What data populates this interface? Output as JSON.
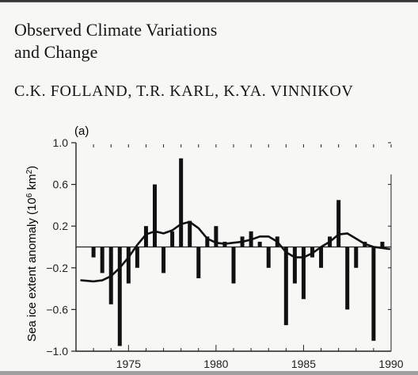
{
  "document": {
    "title_line1": "Observed Climate Variations",
    "title_line2": "and Change",
    "authors": "C.K. FOLLAND,  T.R. KARL,  K.YA. VINNIKOV"
  },
  "chart_data": {
    "type": "bar",
    "panel_label": "(a)",
    "xlabel": "",
    "ylabel_main": "Sea ice extent anomaly (10",
    "ylabel_exp": "6",
    "ylabel_unit": " km",
    "ylabel_sq": "2",
    "ylabel_close": ")",
    "xlim": [
      1972,
      1990
    ],
    "ylim": [
      -1.0,
      1.0
    ],
    "x_ticks": [
      1975,
      1980,
      1985,
      1990
    ],
    "x_tick_labels": [
      "1975",
      "1980",
      "1985",
      "1990"
    ],
    "y_ticks": [
      1.0,
      0.6,
      0.2,
      -0.2,
      -0.6,
      -1.0
    ],
    "y_tick_labels": [
      "1.0",
      "0.6",
      "0.2",
      "−0.2",
      "−0.6",
      "−1.0"
    ],
    "grid": false,
    "series": [
      {
        "style": "monthly-bars",
        "x": [
          1973.0,
          1973.5,
          1974.0,
          1974.5,
          1975.0,
          1975.5,
          1976.0,
          1976.5,
          1977.0,
          1977.5,
          1978.0,
          1978.5,
          1979.0,
          1979.5,
          1980.0,
          1980.5,
          1981.0,
          1981.5,
          1982.0,
          1982.5,
          1983.0,
          1983.5,
          1984.0,
          1984.5,
          1985.0,
          1985.5,
          1986.0,
          1986.5,
          1987.0,
          1987.5,
          1988.0,
          1988.5,
          1989.0,
          1989.5
        ],
        "values": [
          -0.1,
          -0.25,
          -0.55,
          -0.95,
          -0.35,
          -0.2,
          0.2,
          0.6,
          -0.25,
          0.15,
          0.85,
          0.25,
          -0.3,
          0.1,
          0.2,
          0.05,
          -0.35,
          0.1,
          0.15,
          0.05,
          -0.2,
          0.1,
          -0.75,
          -0.35,
          -0.5,
          -0.1,
          -0.2,
          0.1,
          0.45,
          -0.6,
          -0.2,
          0.05,
          -0.9,
          0.05
        ]
      },
      {
        "style": "smoothed-line",
        "x": [
          1972.3,
          1973.0,
          1973.5,
          1974.0,
          1974.5,
          1975.0,
          1975.5,
          1976.0,
          1976.5,
          1977.0,
          1977.5,
          1978.0,
          1978.5,
          1979.0,
          1979.5,
          1980.0,
          1980.5,
          1981.0,
          1981.5,
          1982.0,
          1982.5,
          1983.0,
          1983.5,
          1984.0,
          1984.5,
          1985.0,
          1985.5,
          1986.0,
          1986.5,
          1987.0,
          1987.5,
          1988.0,
          1988.5,
          1989.0,
          1989.5,
          1989.9
        ],
        "values": [
          -0.32,
          -0.33,
          -0.32,
          -0.28,
          -0.2,
          -0.1,
          0.02,
          0.12,
          0.15,
          0.13,
          0.16,
          0.22,
          0.24,
          0.18,
          0.08,
          0.04,
          0.03,
          0.04,
          0.05,
          0.07,
          0.1,
          0.1,
          0.05,
          -0.05,
          -0.1,
          -0.1,
          -0.06,
          0.0,
          0.05,
          0.12,
          0.13,
          0.08,
          0.03,
          0.0,
          -0.01,
          -0.02
        ]
      }
    ]
  }
}
